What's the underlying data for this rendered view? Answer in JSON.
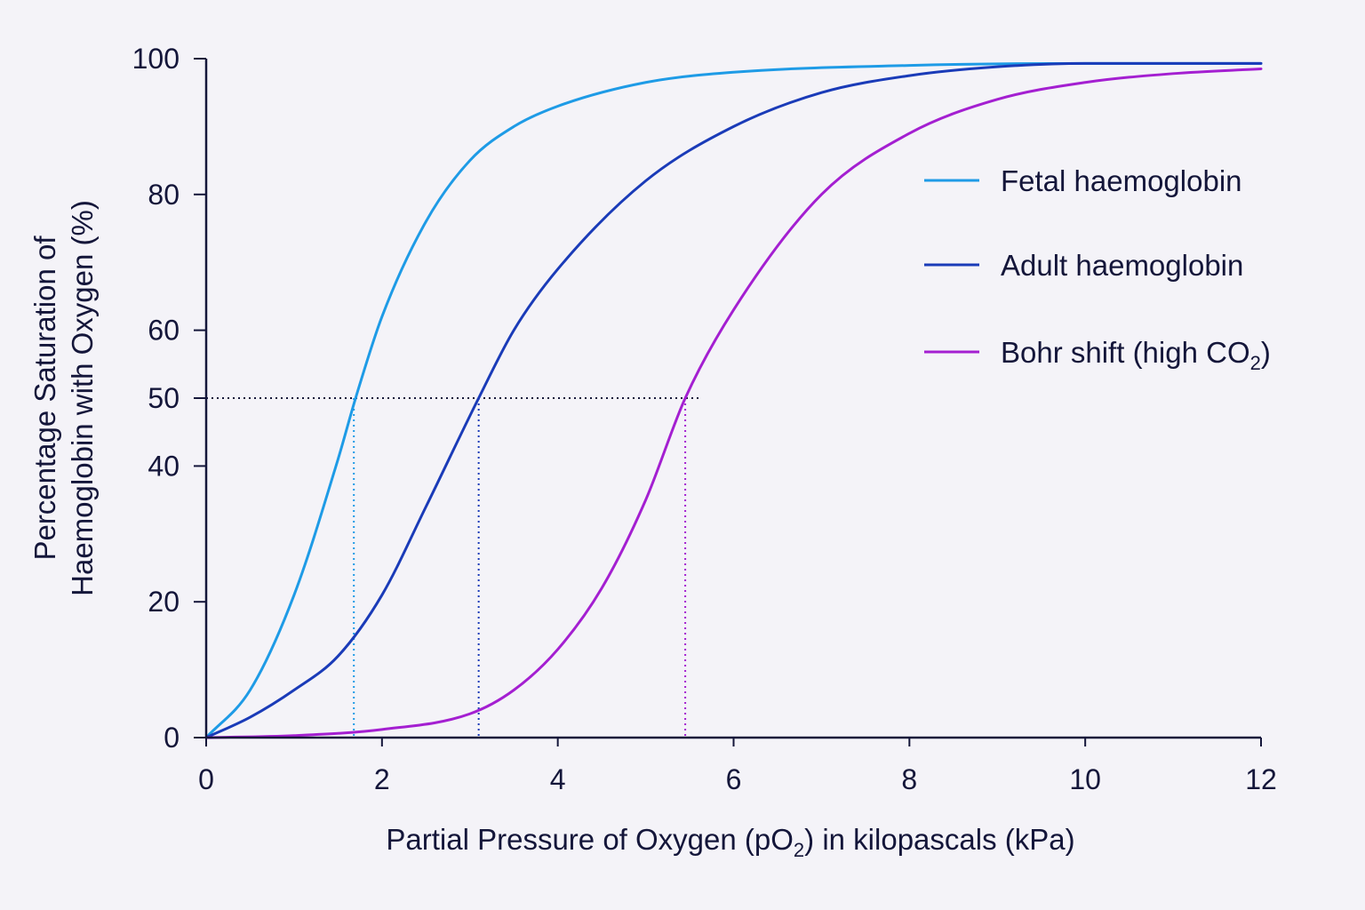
{
  "chart_data": {
    "type": "line",
    "xlabel": {
      "before": "Partial Pressure of Oxygen (pO",
      "sub": "2",
      "after": ") in kilopascals (kPa)"
    },
    "ylabel": {
      "line1": "Percentage Saturation of",
      "line2": "Haemoglobin with Oxygen (%)"
    },
    "xlim": [
      0,
      12
    ],
    "ylim": [
      0,
      100
    ],
    "x_ticks": [
      0,
      2,
      4,
      6,
      8,
      10,
      12
    ],
    "y_ticks": [
      0,
      20,
      40,
      50,
      60,
      80,
      100
    ],
    "grid": false,
    "legend_position": "right",
    "series": [
      {
        "name": "Fetal haemoglobin",
        "color": "#1e9be6",
        "x": [
          0,
          0.5,
          1.0,
          1.5,
          1.7,
          2.0,
          2.5,
          3.0,
          3.5,
          4.0,
          5.0,
          6.0,
          8.0,
          10.0,
          12.0
        ],
        "y": [
          0,
          7,
          21,
          41,
          50,
          62,
          76,
          85,
          90,
          93,
          96.5,
          98,
          99,
          99.3,
          99.3
        ]
      },
      {
        "name": "Adult haemoglobin",
        "color": "#1a3bb8",
        "x": [
          0,
          0.5,
          1.0,
          1.5,
          2.0,
          2.5,
          3.1,
          3.5,
          4.0,
          5.0,
          6.0,
          7.0,
          8.0,
          9.0,
          10.0,
          12.0
        ],
        "y": [
          0,
          3,
          7,
          12,
          21,
          34,
          50,
          60,
          69,
          82,
          90,
          95,
          97.5,
          98.8,
          99.3,
          99.3
        ]
      },
      {
        "name": {
          "before": "Bohr shift (high CO",
          "sub": "2",
          "after": ")"
        },
        "color": "#a41fd1",
        "x": [
          0,
          1.0,
          2.0,
          3.0,
          3.5,
          4.0,
          4.5,
          5.0,
          5.45,
          6.0,
          7.0,
          8.0,
          9.0,
          10.0,
          11.0,
          12.0
        ],
        "y": [
          0,
          0.3,
          1.2,
          3.5,
          7,
          13,
          22,
          35,
          50,
          63,
          80,
          89,
          94,
          96.5,
          97.8,
          98.5
        ]
      }
    ],
    "reference_lines": {
      "y": 50,
      "x_values": [
        1.68,
        3.1,
        5.45
      ],
      "horizontal_color": "#14163a"
    }
  }
}
